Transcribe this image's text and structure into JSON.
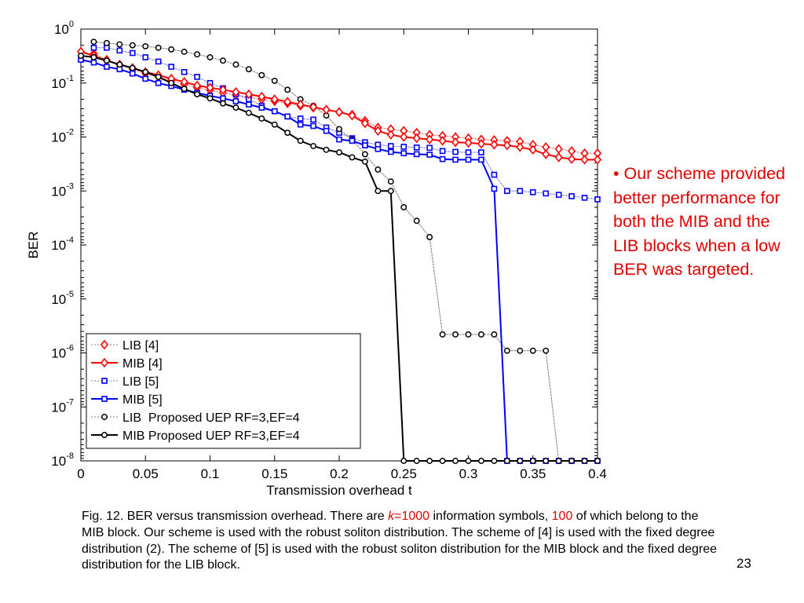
{
  "chart_data": {
    "type": "line",
    "xlabel": "Transmission overhead t",
    "ylabel": "BER",
    "xlim": [
      0,
      0.4
    ],
    "ylim": [
      1e-08,
      1
    ],
    "yscale": "log",
    "xticks": [
      "0",
      "0.05",
      "0.1",
      "0.15",
      "0.2",
      "0.25",
      "0.3",
      "0.35",
      "0.4"
    ],
    "yticks": [
      {
        "base": "10",
        "exp": "0"
      },
      {
        "base": "10",
        "exp": "-1"
      },
      {
        "base": "10",
        "exp": "-2"
      },
      {
        "base": "10",
        "exp": "-3"
      },
      {
        "base": "10",
        "exp": "-4"
      },
      {
        "base": "10",
        "exp": "-5"
      },
      {
        "base": "10",
        "exp": "-6"
      },
      {
        "base": "10",
        "exp": "-7"
      },
      {
        "base": "10",
        "exp": "-8"
      }
    ],
    "legend_position": "bottom-left",
    "series": [
      {
        "name": "LIB [4]",
        "color": "#ff0000",
        "marker": "diamond",
        "line": "dotted",
        "points": [
          [
            0.01,
            0.35
          ],
          [
            0.02,
            0.27
          ],
          [
            0.03,
            0.22
          ],
          [
            0.04,
            0.18
          ],
          [
            0.05,
            0.15
          ],
          [
            0.06,
            0.13
          ],
          [
            0.07,
            0.11
          ],
          [
            0.08,
            0.095
          ],
          [
            0.09,
            0.082
          ],
          [
            0.1,
            0.074
          ],
          [
            0.11,
            0.066
          ],
          [
            0.12,
            0.06
          ],
          [
            0.13,
            0.055
          ],
          [
            0.14,
            0.05
          ],
          [
            0.15,
            0.046
          ],
          [
            0.16,
            0.042
          ],
          [
            0.17,
            0.038
          ],
          [
            0.18,
            0.035
          ],
          [
            0.19,
            0.032
          ],
          [
            0.2,
            0.029
          ],
          [
            0.21,
            0.026
          ],
          [
            0.22,
            0.02
          ],
          [
            0.23,
            0.015
          ],
          [
            0.24,
            0.014
          ],
          [
            0.25,
            0.013
          ],
          [
            0.26,
            0.012
          ],
          [
            0.27,
            0.011
          ],
          [
            0.28,
            0.0105
          ],
          [
            0.29,
            0.01
          ],
          [
            0.3,
            0.0095
          ],
          [
            0.31,
            0.009
          ],
          [
            0.32,
            0.0088
          ],
          [
            0.33,
            0.0085
          ],
          [
            0.34,
            0.0082
          ],
          [
            0.35,
            0.0072
          ],
          [
            0.36,
            0.0065
          ],
          [
            0.37,
            0.006
          ],
          [
            0.38,
            0.0055
          ],
          [
            0.39,
            0.005
          ],
          [
            0.4,
            0.005
          ]
        ]
      },
      {
        "name": "MIB [4]",
        "color": "#ff0000",
        "marker": "diamond",
        "line": "solid",
        "points": [
          [
            0,
            0.38
          ],
          [
            0.01,
            0.32
          ],
          [
            0.02,
            0.26
          ],
          [
            0.03,
            0.22
          ],
          [
            0.04,
            0.19
          ],
          [
            0.05,
            0.16
          ],
          [
            0.06,
            0.14
          ],
          [
            0.07,
            0.12
          ],
          [
            0.08,
            0.105
          ],
          [
            0.09,
            0.09
          ],
          [
            0.1,
            0.082
          ],
          [
            0.11,
            0.075
          ],
          [
            0.12,
            0.068
          ],
          [
            0.13,
            0.062
          ],
          [
            0.14,
            0.056
          ],
          [
            0.15,
            0.05
          ],
          [
            0.16,
            0.045
          ],
          [
            0.17,
            0.04
          ],
          [
            0.18,
            0.036
          ],
          [
            0.19,
            0.032
          ],
          [
            0.2,
            0.029
          ],
          [
            0.21,
            0.025
          ],
          [
            0.22,
            0.018
          ],
          [
            0.23,
            0.013
          ],
          [
            0.24,
            0.011
          ],
          [
            0.25,
            0.01
          ],
          [
            0.26,
            0.0095
          ],
          [
            0.27,
            0.009
          ],
          [
            0.28,
            0.0085
          ],
          [
            0.29,
            0.008
          ],
          [
            0.3,
            0.0078
          ],
          [
            0.31,
            0.0075
          ],
          [
            0.32,
            0.0072
          ],
          [
            0.33,
            0.007
          ],
          [
            0.34,
            0.0065
          ],
          [
            0.35,
            0.0058
          ],
          [
            0.36,
            0.0048
          ],
          [
            0.37,
            0.0042
          ],
          [
            0.38,
            0.0039
          ],
          [
            0.39,
            0.0038
          ],
          [
            0.4,
            0.0038
          ]
        ]
      },
      {
        "name": "LIB [5]",
        "color": "#0000ff",
        "marker": "square",
        "line": "dotted",
        "points": [
          [
            0.01,
            0.45
          ],
          [
            0.02,
            0.45
          ],
          [
            0.03,
            0.4
          ],
          [
            0.04,
            0.36
          ],
          [
            0.05,
            0.3
          ],
          [
            0.06,
            0.25
          ],
          [
            0.07,
            0.2
          ],
          [
            0.08,
            0.16
          ],
          [
            0.09,
            0.13
          ],
          [
            0.1,
            0.1
          ],
          [
            0.11,
            0.08
          ],
          [
            0.12,
            0.062
          ],
          [
            0.13,
            0.05
          ],
          [
            0.14,
            0.038
          ],
          [
            0.15,
            0.03
          ],
          [
            0.16,
            0.024
          ],
          [
            0.17,
            0.022
          ],
          [
            0.18,
            0.021
          ],
          [
            0.19,
            0.015
          ],
          [
            0.2,
            0.012
          ],
          [
            0.21,
            0.0095
          ],
          [
            0.22,
            0.008
          ],
          [
            0.23,
            0.0072
          ],
          [
            0.24,
            0.0068
          ],
          [
            0.25,
            0.0066
          ],
          [
            0.26,
            0.0064
          ],
          [
            0.27,
            0.0063
          ],
          [
            0.28,
            0.0055
          ],
          [
            0.29,
            0.0053
          ],
          [
            0.3,
            0.0052
          ],
          [
            0.31,
            0.0052
          ],
          [
            0.32,
            0.002
          ],
          [
            0.33,
            0.001
          ],
          [
            0.34,
            0.001
          ],
          [
            0.35,
            0.00095
          ],
          [
            0.36,
            0.0009
          ],
          [
            0.37,
            0.00085
          ],
          [
            0.38,
            0.0008
          ],
          [
            0.39,
            0.00075
          ],
          [
            0.4,
            0.0007
          ]
        ]
      },
      {
        "name": "MIB [5]",
        "color": "#0000ff",
        "marker": "square",
        "line": "solid",
        "points": [
          [
            0,
            0.27
          ],
          [
            0.01,
            0.24
          ],
          [
            0.02,
            0.2
          ],
          [
            0.03,
            0.18
          ],
          [
            0.04,
            0.15
          ],
          [
            0.05,
            0.12
          ],
          [
            0.06,
            0.1
          ],
          [
            0.07,
            0.088
          ],
          [
            0.08,
            0.075
          ],
          [
            0.09,
            0.066
          ],
          [
            0.1,
            0.058
          ],
          [
            0.11,
            0.052
          ],
          [
            0.12,
            0.046
          ],
          [
            0.13,
            0.04
          ],
          [
            0.14,
            0.035
          ],
          [
            0.15,
            0.03
          ],
          [
            0.16,
            0.024
          ],
          [
            0.17,
            0.017
          ],
          [
            0.18,
            0.016
          ],
          [
            0.19,
            0.013
          ],
          [
            0.2,
            0.009
          ],
          [
            0.21,
            0.0085
          ],
          [
            0.22,
            0.007
          ],
          [
            0.23,
            0.006
          ],
          [
            0.24,
            0.0053
          ],
          [
            0.25,
            0.005
          ],
          [
            0.26,
            0.0048
          ],
          [
            0.27,
            0.0047
          ],
          [
            0.28,
            0.0039
          ],
          [
            0.29,
            0.0038
          ],
          [
            0.3,
            0.0038
          ],
          [
            0.31,
            0.0038
          ],
          [
            0.32,
            0.0011
          ],
          [
            0.33,
            1e-08
          ],
          [
            0.34,
            1e-08
          ],
          [
            0.35,
            1e-08
          ],
          [
            0.36,
            1e-08
          ],
          [
            0.37,
            1e-08
          ],
          [
            0.38,
            1e-08
          ],
          [
            0.39,
            1e-08
          ],
          [
            0.4,
            1e-08
          ]
        ]
      },
      {
        "name": "LIB  Proposed UEP RF=3,EF=4",
        "color": "#000000",
        "marker": "circle",
        "line": "dotted",
        "points": [
          [
            0.01,
            0.58
          ],
          [
            0.02,
            0.55
          ],
          [
            0.03,
            0.52
          ],
          [
            0.04,
            0.5
          ],
          [
            0.05,
            0.48
          ],
          [
            0.06,
            0.45
          ],
          [
            0.07,
            0.42
          ],
          [
            0.08,
            0.38
          ],
          [
            0.09,
            0.34
          ],
          [
            0.1,
            0.3
          ],
          [
            0.11,
            0.26
          ],
          [
            0.12,
            0.22
          ],
          [
            0.13,
            0.18
          ],
          [
            0.14,
            0.14
          ],
          [
            0.15,
            0.11
          ],
          [
            0.16,
            0.075
          ],
          [
            0.17,
            0.05
          ],
          [
            0.18,
            0.038
          ],
          [
            0.19,
            0.025
          ],
          [
            0.2,
            0.014
          ],
          [
            0.21,
            0.009
          ],
          [
            0.22,
            0.0048
          ],
          [
            0.23,
            0.0025
          ],
          [
            0.24,
            0.0015
          ],
          [
            0.25,
            0.0005
          ],
          [
            0.26,
            0.00028
          ],
          [
            0.27,
            0.00014
          ],
          [
            0.28,
            2.2e-06
          ],
          [
            0.29,
            2.2e-06
          ],
          [
            0.3,
            2.2e-06
          ],
          [
            0.31,
            2.2e-06
          ],
          [
            0.32,
            2.2e-06
          ],
          [
            0.33,
            1.1e-06
          ],
          [
            0.34,
            1.1e-06
          ],
          [
            0.35,
            1.1e-06
          ],
          [
            0.36,
            1.1e-06
          ],
          [
            0.37,
            1e-08
          ],
          [
            0.38,
            1e-08
          ],
          [
            0.39,
            1e-08
          ],
          [
            0.4,
            1e-08
          ]
        ]
      },
      {
        "name": "MIB Proposed UEP RF=3,EF=4",
        "color": "#000000",
        "marker": "circle",
        "line": "solid",
        "points": [
          [
            0,
            0.32
          ],
          [
            0.01,
            0.3
          ],
          [
            0.02,
            0.26
          ],
          [
            0.03,
            0.22
          ],
          [
            0.04,
            0.19
          ],
          [
            0.05,
            0.16
          ],
          [
            0.06,
            0.13
          ],
          [
            0.07,
            0.1
          ],
          [
            0.08,
            0.078
          ],
          [
            0.09,
            0.062
          ],
          [
            0.1,
            0.052
          ],
          [
            0.11,
            0.042
          ],
          [
            0.12,
            0.035
          ],
          [
            0.13,
            0.028
          ],
          [
            0.14,
            0.022
          ],
          [
            0.15,
            0.017
          ],
          [
            0.16,
            0.012
          ],
          [
            0.17,
            0.0085
          ],
          [
            0.18,
            0.0068
          ],
          [
            0.19,
            0.0058
          ],
          [
            0.2,
            0.0052
          ],
          [
            0.21,
            0.0042
          ],
          [
            0.22,
            0.0035
          ],
          [
            0.23,
            0.001
          ],
          [
            0.24,
            0.001
          ],
          [
            0.25,
            1e-08
          ],
          [
            0.26,
            1e-08
          ],
          [
            0.27,
            1e-08
          ],
          [
            0.28,
            1e-08
          ],
          [
            0.29,
            1e-08
          ],
          [
            0.3,
            1e-08
          ],
          [
            0.31,
            1e-08
          ],
          [
            0.32,
            1e-08
          ],
          [
            0.33,
            1e-08
          ],
          [
            0.34,
            1e-08
          ],
          [
            0.35,
            1e-08
          ],
          [
            0.36,
            1e-08
          ],
          [
            0.37,
            1e-08
          ],
          [
            0.38,
            1e-08
          ],
          [
            0.39,
            1e-08
          ],
          [
            0.4,
            1e-08
          ]
        ]
      }
    ]
  },
  "note": {
    "bullet": "• Our scheme provided better performance for both the MIB and the LIB blocks when a low BER was targeted."
  },
  "caption": {
    "part1": "Fig. 12. BER versus transmission overhead. There are ",
    "k": "k",
    "k_value": "=1000",
    "part2": " information symbols, ",
    "red_value": "100",
    "part3": " of which belong to the MIB block. Our scheme is used with the robust soliton distribution. The scheme of [4] is used with the fixed degree distribution (2). The scheme of [5] is used with the robust soliton distribution for the MIB block and the fixed degree distribution for the LIB block."
  },
  "page_number": "23"
}
